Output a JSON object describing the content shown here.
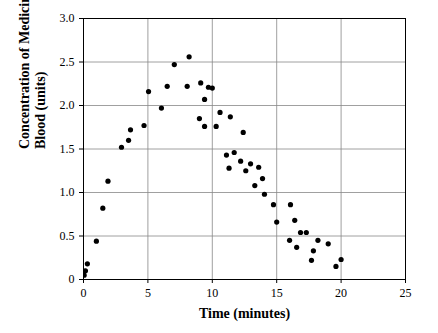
{
  "chart_data": {
    "type": "scatter",
    "x_label": "Time (minutes)",
    "y_label": "Concentration of Medicine in Blood (units)",
    "x": [
      0.05,
      0.15,
      0.3,
      1.0,
      1.5,
      1.9,
      2.95,
      3.5,
      3.65,
      4.7,
      5.05,
      6.05,
      6.5,
      7.05,
      8.05,
      8.2,
      9.1,
      9.0,
      9.4,
      9.4,
      9.7,
      10.0,
      10.3,
      10.6,
      11.1,
      11.4,
      11.3,
      11.7,
      12.2,
      12.4,
      12.6,
      12.97,
      13.3,
      13.6,
      13.9,
      14.05,
      14.75,
      15.0,
      16.07,
      16.0,
      16.4,
      16.55,
      16.85,
      17.3,
      17.7,
      18.2,
      17.85,
      19.0,
      19.6,
      20.0
    ],
    "values": [
      0.05,
      0.1,
      0.18,
      0.44,
      0.82,
      1.13,
      1.52,
      1.6,
      1.72,
      1.77,
      2.16,
      1.97,
      2.22,
      2.47,
      2.22,
      2.56,
      2.26,
      1.85,
      2.07,
      1.76,
      2.21,
      2.2,
      1.76,
      1.92,
      1.43,
      1.87,
      1.28,
      1.46,
      1.36,
      1.69,
      1.25,
      1.33,
      1.08,
      1.29,
      1.16,
      0.98,
      0.86,
      0.66,
      0.86,
      0.45,
      0.68,
      0.37,
      0.54,
      0.54,
      0.22,
      0.45,
      0.33,
      0.41,
      0.15,
      0.23
    ],
    "color": "#000000",
    "marker": "circle",
    "xlim": [
      0,
      25
    ],
    "xticks": [
      0,
      5,
      10,
      15,
      20,
      25
    ],
    "ylim": [
      0,
      3
    ],
    "yticks": [
      0,
      0.5,
      {
        "value": 1,
        "label": "1.0"
      },
      1.5,
      {
        "value": 2,
        "label": "2.0"
      },
      2.5,
      {
        "value": 3,
        "label": "3.0"
      }
    ],
    "grid": true
  }
}
